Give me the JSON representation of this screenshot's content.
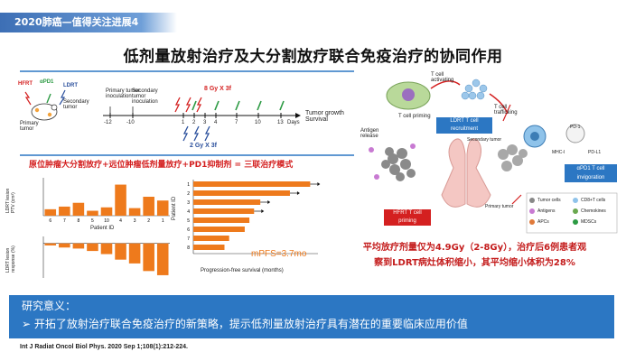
{
  "header": {
    "tag": "2020肺癌—值得关注进展4",
    "title": "低剂量放射治疗及大分割放疗联合免疫治疗的协同作用"
  },
  "schema": {
    "left_labels": [
      "HFRT",
      "αPD1",
      "LDRT",
      "Primary tumor",
      "Secondary tumor"
    ],
    "events": [
      "Primary tumor inoculation",
      "Secondary tumor inoculation",
      "8 Gy X 3f",
      "2 Gy X 3f"
    ],
    "ticks": [
      "-12",
      "-10",
      "1",
      "2",
      "3",
      "4",
      "7",
      "10",
      "13",
      "Days"
    ],
    "right_label": "Tumor growth\nSurvival"
  },
  "caption": "原位肿瘤大分割放疗+远位肿瘤低剂量放疗+PD1抑制剂 = 三联治疗模式",
  "chart_data": [
    {
      "type": "bar",
      "title": "",
      "categories": [
        "6",
        "7",
        "8",
        "5",
        "10",
        "4",
        "3",
        "2",
        "1"
      ],
      "values": [
        17,
        24,
        34,
        13,
        22,
        82,
        20,
        50,
        40
      ],
      "xlabel": "Patient ID",
      "ylabel": "LDRT lesion PTV (cm³)",
      "ylim": [
        0,
        100
      ]
    },
    {
      "type": "bar",
      "title": "",
      "categories": [
        "1",
        "2",
        "3",
        "4",
        "5",
        "6",
        "7",
        "8",
        "9"
      ],
      "values": [
        -6,
        -12,
        -15,
        -22,
        -31,
        -47,
        -58,
        -80,
        -92
      ],
      "xlabel": "",
      "ylabel": "LDRT lesion response (%)",
      "ylim": [
        -100,
        20
      ]
    },
    {
      "type": "bar",
      "orientation": "horizontal",
      "title": "",
      "categories": [
        "1",
        "2",
        "3",
        "4",
        "5",
        "6",
        "7",
        "8"
      ],
      "values": [
        7.5,
        6.2,
        4.3,
        3.9,
        3.6,
        3.3,
        2.3,
        2.0
      ],
      "xlabel": "Progression-free survival (months)",
      "ylabel": "Patient ID",
      "xlim": [
        0,
        8
      ],
      "ongoing": [
        true,
        true,
        true,
        true,
        false,
        false,
        false,
        false
      ],
      "annotation": "mPFS=3.7mo"
    }
  ],
  "diagram": {
    "labels": [
      "T cell activating",
      "T cell trafficking",
      "T cell priming",
      "Antigen release",
      "LDRT T cell recruitment",
      "Secondary tumor",
      "Primary tumor",
      "HFRT T cell priming",
      "MHC-I",
      "PD-1",
      "PD-L1",
      "αPD1 T cell invigoration"
    ],
    "legend": [
      "Tumor cells",
      "CD8+T cells",
      "Antigens",
      "Chemokines",
      "APCs",
      "MDSCs"
    ]
  },
  "summary": [
    "平均放疗剂量仅为4.9Gy（2-8Gy），治疗后6例患者观",
    "察到LDRT病灶体积缩小，其平均缩小体积为28%"
  ],
  "significance": {
    "heading": "研究意义：",
    "text": "➢ 开拓了放射治疗联合免疫治疗的新策略，提示低剂量放射治疗具有潜在的重要临床应用价值"
  },
  "reference": "Int J Radiat Oncol Biol Phys. 2020 Sep 1;108(1):212-224.",
  "colors": {
    "accent": "#2c77c3",
    "bar": "#ee7a1c",
    "red": "#d42020"
  }
}
